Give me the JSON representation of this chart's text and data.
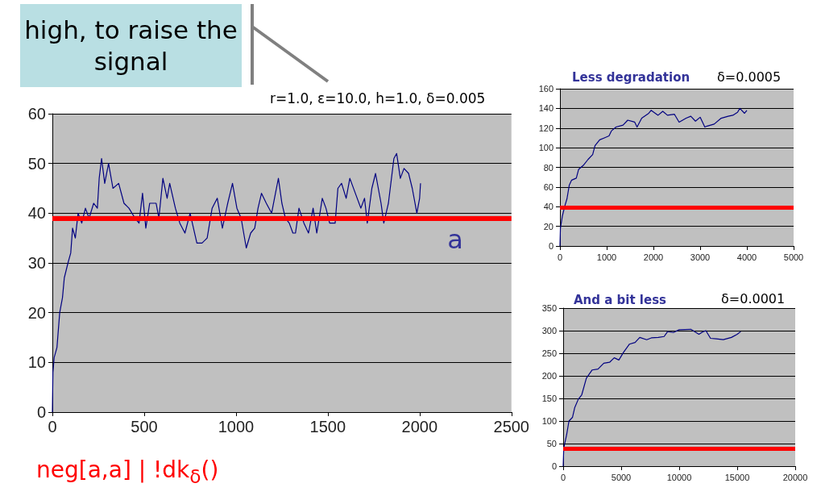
{
  "chart_data": [
    {
      "type": "line",
      "title": "r=1.0, ε=10.0, h=1.0, δ=0.005",
      "annotations": [
        "high, to raise the signal",
        "neg[a,a] | !dk$_{δ}$()"
      ],
      "x": [
        0,
        3,
        10,
        25,
        40,
        55,
        65,
        85,
        100,
        110,
        125,
        140,
        160,
        180,
        200,
        225,
        245,
        255,
        268,
        285,
        306,
        330,
        361,
        390,
        417,
        450,
        472,
        491,
        509,
        530,
        565,
        580,
        602,
        625,
        639,
        670,
        694,
        722,
        750,
        787,
        815,
        843,
        870,
        898,
        926,
        955,
        981,
        1005,
        1028,
        1056,
        1080,
        1102,
        1120,
        1139,
        1165,
        1194,
        1215,
        1231,
        1250,
        1269,
        1290,
        1310,
        1324,
        1343,
        1370,
        1395,
        1420,
        1440,
        1470,
        1490,
        1510,
        1540,
        1555,
        1575,
        1600,
        1620,
        1650,
        1680,
        1700,
        1715,
        1740,
        1760,
        1790,
        1805,
        1830,
        1860,
        1875,
        1895,
        1915,
        1940,
        1960,
        1985,
        2000,
        2005
      ],
      "values": [
        0,
        8,
        11,
        13,
        20,
        23,
        27,
        30,
        32,
        37,
        35,
        40,
        38,
        41,
        39,
        42,
        41,
        47,
        51,
        46,
        50,
        45,
        46,
        42,
        41,
        39,
        38,
        44,
        37,
        42,
        42,
        39,
        47,
        43,
        46,
        41,
        38,
        36,
        40,
        34,
        34,
        35,
        41,
        43,
        37,
        42,
        46,
        41,
        39,
        33,
        36,
        37,
        41,
        44,
        42,
        40,
        44,
        47,
        42,
        39,
        38,
        36,
        36,
        41,
        38,
        36,
        41,
        36,
        43,
        41,
        38,
        38,
        45,
        46,
        43,
        47,
        44,
        41,
        43,
        38,
        45,
        48,
        42,
        38,
        42,
        51,
        52,
        47,
        49,
        48,
        45,
        40,
        43,
        46
      ],
      "color": "#000080",
      "xlim": [
        0,
        2500
      ],
      "xticks": [
        0,
        500,
        1000,
        1500,
        2000,
        2500
      ],
      "ylim": [
        0,
        60
      ],
      "yticks": [
        0,
        10,
        20,
        30,
        40,
        50,
        60
      ],
      "grid": "y",
      "ref_lines": [
        {
          "axis": "y",
          "value": 39,
          "label": "a",
          "color": "#ff0000"
        }
      ]
    },
    {
      "type": "line",
      "title": "Less degradation",
      "subtitle": "δ=0.0005",
      "x": [
        0,
        10,
        50,
        100,
        150,
        200,
        250,
        350,
        400,
        500,
        600,
        700,
        750,
        850,
        950,
        1050,
        1100,
        1200,
        1350,
        1450,
        1600,
        1650,
        1750,
        1900,
        1950,
        2100,
        2200,
        2300,
        2450,
        2550,
        2700,
        2800,
        2900,
        3000,
        3100,
        3150,
        3300,
        3450,
        3600,
        3700,
        3800,
        3850,
        3950,
        4000
      ],
      "values": [
        0,
        18,
        30,
        40,
        48,
        62,
        67,
        69,
        78,
        82,
        88,
        93,
        102,
        108,
        110,
        112,
        117,
        121,
        123,
        128,
        126,
        121,
        130,
        135,
        138,
        133,
        137,
        133,
        134,
        126,
        130,
        132,
        127,
        131,
        121,
        122,
        124,
        130,
        132,
        133,
        136,
        140,
        135,
        138
      ],
      "color": "#000080",
      "xlim": [
        0,
        5000
      ],
      "xticks": [
        0,
        1000,
        2000,
        3000,
        4000,
        5000
      ],
      "ylim": [
        0,
        160
      ],
      "yticks": [
        0,
        20,
        40,
        60,
        80,
        100,
        120,
        140,
        160
      ],
      "grid": "y",
      "ref_lines": [
        {
          "axis": "y",
          "value": 39,
          "color": "#ff0000"
        }
      ]
    },
    {
      "type": "line",
      "title": "And a bit less",
      "subtitle": "δ=0.0001",
      "x": [
        0,
        50,
        300,
        500,
        800,
        1000,
        1300,
        1600,
        2000,
        2500,
        3000,
        3500,
        4000,
        4400,
        4800,
        5200,
        5700,
        6200,
        6600,
        7200,
        7600,
        8200,
        8700,
        9000,
        9500,
        10000,
        11000,
        11700,
        12000,
        12300,
        12700,
        13200,
        13800,
        14500,
        15000,
        15300
      ],
      "values": [
        0,
        40,
        70,
        100,
        108,
        130,
        148,
        158,
        195,
        213,
        215,
        228,
        230,
        240,
        235,
        252,
        270,
        274,
        285,
        280,
        284,
        285,
        287,
        298,
        296,
        302,
        303,
        292,
        297,
        300,
        283,
        282,
        280,
        285,
        292,
        298
      ],
      "color": "#000080",
      "xlim": [
        0,
        20000
      ],
      "xticks": [
        0,
        5000,
        10000,
        15000,
        20000
      ],
      "ylim": [
        0,
        350
      ],
      "yticks": [
        0,
        50,
        100,
        150,
        200,
        250,
        300,
        350
      ],
      "grid": "y",
      "ref_lines": [
        {
          "axis": "y",
          "value": 38,
          "color": "#ff0000"
        }
      ]
    }
  ]
}
